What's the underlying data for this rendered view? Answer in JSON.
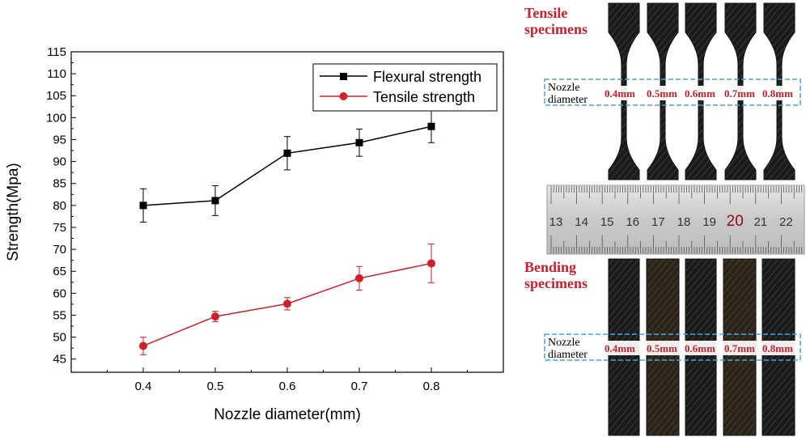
{
  "chart_data": {
    "type": "line",
    "xlabel": "Nozzle diameter(mm)",
    "ylabel": "Strength(Mpa)",
    "x": [
      0.4,
      0.5,
      0.6,
      0.7,
      0.8
    ],
    "xlim": [
      0.3,
      0.9
    ],
    "ylim": [
      42,
      115
    ],
    "xticks": [
      "0.4",
      "0.5",
      "0.6",
      "0.7",
      "0.8"
    ],
    "yticks": [
      "45",
      "50",
      "55",
      "60",
      "65",
      "70",
      "75",
      "80",
      "85",
      "90",
      "95",
      "100",
      "105",
      "110",
      "115"
    ],
    "legend_position": "top-right",
    "series": [
      {
        "name": "Flexural strength",
        "color": "#000000",
        "marker": "square",
        "values": [
          80.0,
          81.1,
          91.9,
          94.3,
          98.0
        ],
        "error": [
          3.8,
          3.4,
          3.8,
          3.1,
          3.7
        ]
      },
      {
        "name": "Tensile strength",
        "color": "#d0202a",
        "marker": "circle",
        "values": [
          48.0,
          54.7,
          57.6,
          63.4,
          66.8
        ],
        "error": [
          2.0,
          1.2,
          1.4,
          2.7,
          4.4
        ]
      }
    ]
  },
  "photo_panel": {
    "tensile_title": [
      "Tensile",
      "specimens"
    ],
    "bending_title": [
      "Bending",
      "specimens"
    ],
    "nozzle_label": [
      "Nozzle",
      "diameter"
    ],
    "tensile_sizes": [
      "0.4mm",
      "0.5mm",
      "0.6mm",
      "0.7mm",
      "0.8mm"
    ],
    "bending_sizes": [
      "0.4mm",
      "0.5mm",
      "0.6mm",
      "0.7mm",
      "0.8mm"
    ],
    "ruler_numbers": [
      "13",
      "14",
      "15",
      "16",
      "17",
      "18",
      "19",
      "20",
      "21",
      "22"
    ],
    "ruler_highlight": "20",
    "title_color": "#c8202c",
    "size_label_color": "#c8202c"
  }
}
